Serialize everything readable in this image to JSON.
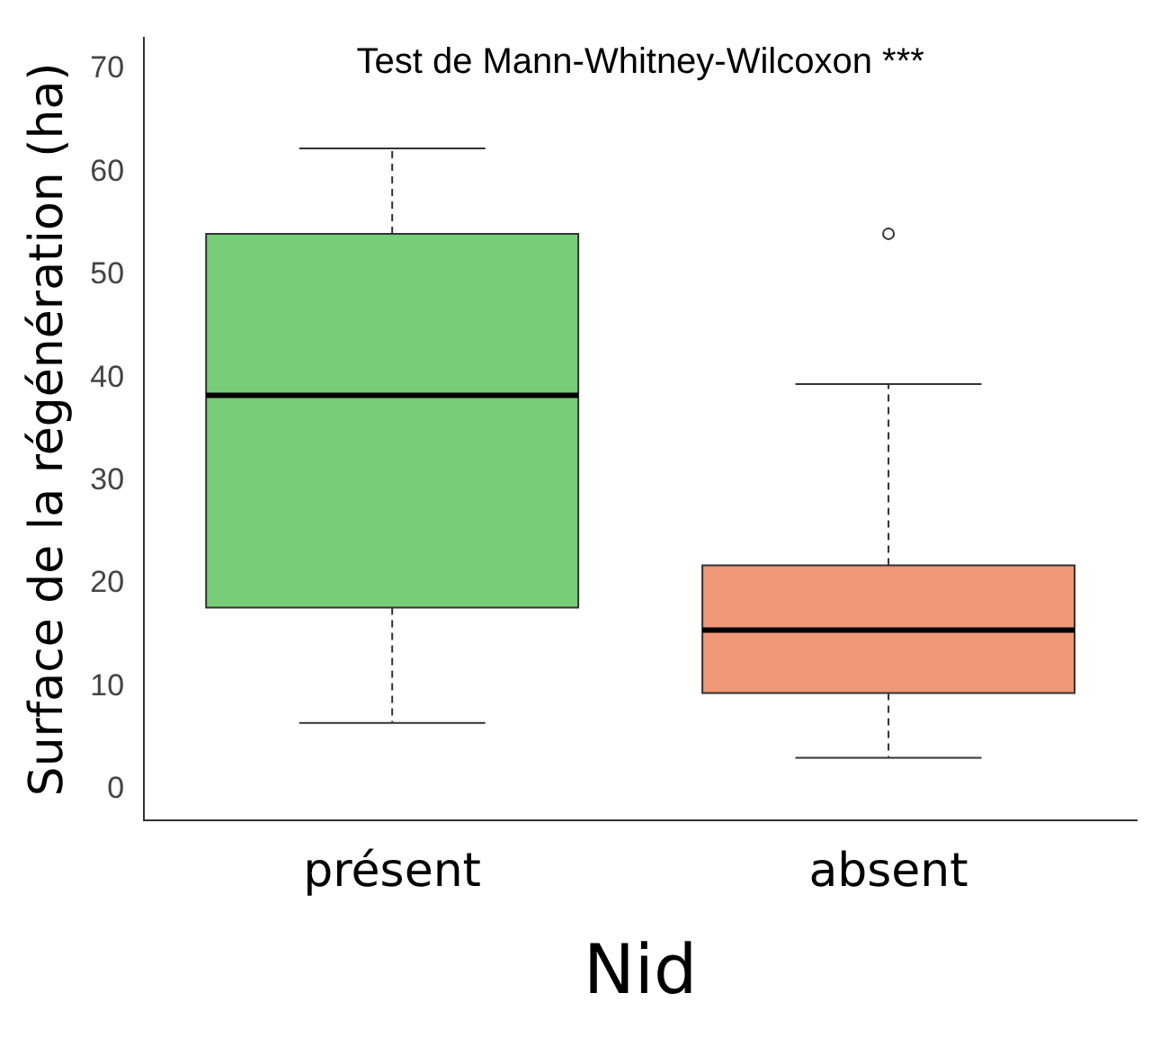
{
  "chart_data": {
    "type": "box",
    "xlabel": "Nid",
    "ylabel": "Surface de la régénération (ha)",
    "annotations": [
      "Test de Mann-Whitney-Wilcoxon ***"
    ],
    "categories": [
      "présent",
      "absent"
    ],
    "colors": [
      "#78cd78",
      "#ef9777"
    ],
    "boxes": [
      {
        "low": 6.5,
        "q1": 17.7,
        "median": 38.3,
        "q3": 54,
        "high": 62.3
      },
      {
        "low": 3.1,
        "q1": 9.4,
        "median": 15.5,
        "q3": 21.8,
        "high": 39.4,
        "outliers": [
          54
        ]
      }
    ],
    "ylim": [
      -3,
      73
    ],
    "yticks": [
      0,
      10,
      20,
      30,
      40,
      50,
      60,
      70
    ],
    "grid": false,
    "legend": false
  }
}
